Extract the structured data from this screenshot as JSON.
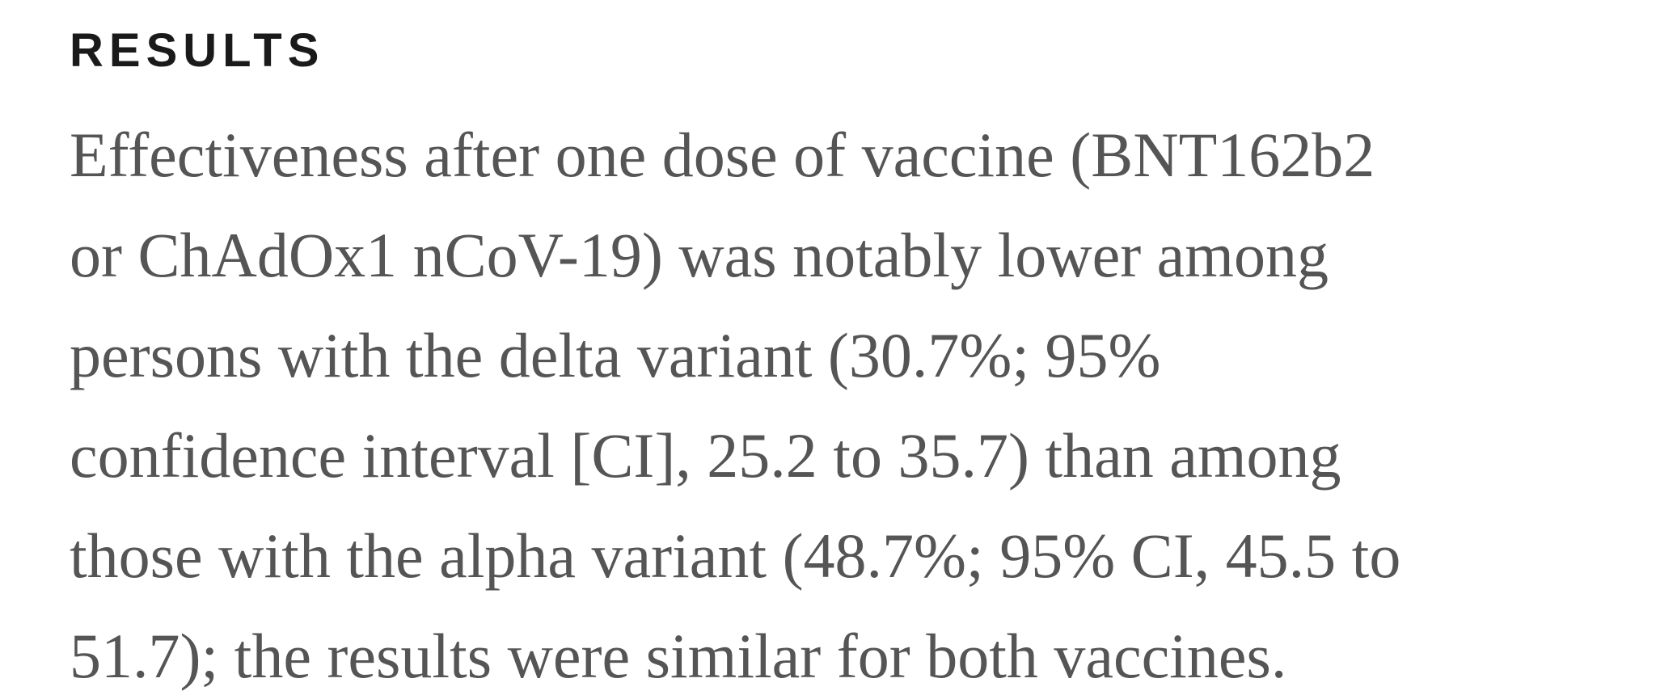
{
  "section": {
    "heading": "RESULTS",
    "lines": [
      "Effectiveness after one dose of vaccine (BNT162b2",
      "or ChAdOx1 nCoV-19) was notably lower among",
      "persons with the delta variant (30.7%; 95%",
      "confidence interval [CI], 25.2 to 35.7) than among",
      "those with the alpha variant (48.7%; 95% CI, 45.5 to",
      "51.7); the results were similar for both vaccines."
    ]
  }
}
